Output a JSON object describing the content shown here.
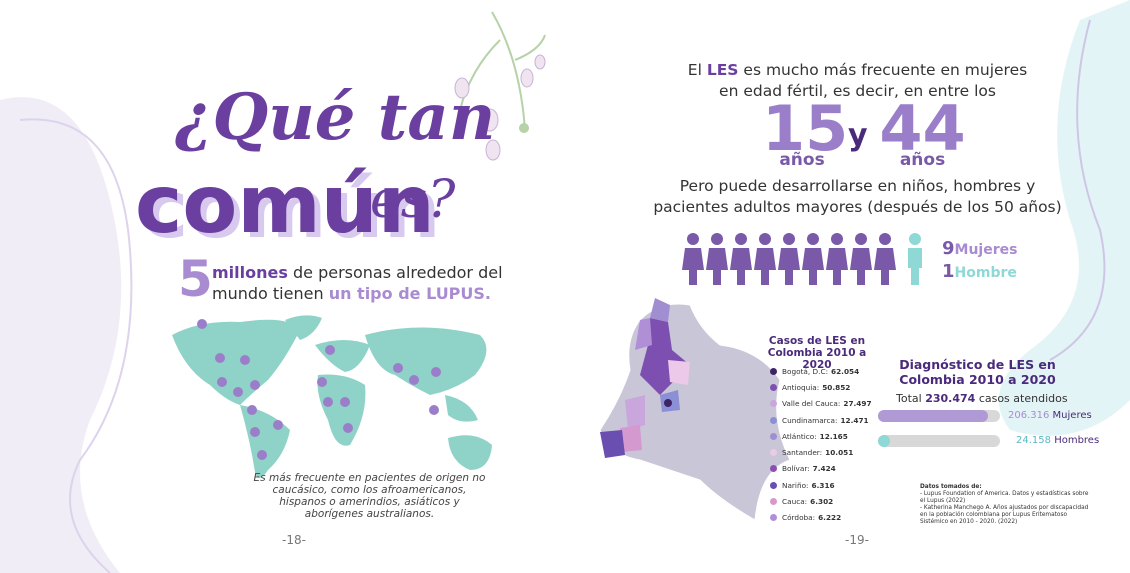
{
  "left": {
    "title_line1": "¿Qué tan",
    "title_word": "común",
    "title_end": "es?",
    "stat_number": "5",
    "stat_bold": "millones",
    "stat_text": "de personas alrededor del",
    "stat_text2": "mundo tienen",
    "stat_highlight": "un tipo de LUPUS.",
    "map_note": "Es más frecuente en pacientes de origen no caucásico, como los afroamericanos, hispanos o amerindios, asiáticos y aborígenes australianos.",
    "page": "-18-"
  },
  "right": {
    "intro_before": "El",
    "intro_bold": "LES",
    "intro_after": "es mucho más frecuente en mujeres",
    "intro_line2": "en edad fértil, es decir, en entre los",
    "age_from": "15",
    "age_from_unit": "años",
    "connector": "y",
    "age_to": "44",
    "age_to_unit": "años",
    "subtitle_line1": "Pero puede desarrollarse en niños, hombres y",
    "subtitle_line2": "pacientes adultos mayores (después de los 50 años)",
    "ratio": {
      "women_count": "9",
      "women_label": "Mujeres",
      "men_count": "1",
      "men_label": "Hombre"
    },
    "cases": {
      "title": "Casos de LES en Colombia 2010 a 2020",
      "items": [
        {
          "name": "Bogotá, D.C:",
          "value": "62.054",
          "color": "#3d2466"
        },
        {
          "name": "Antioquia:",
          "value": "50.852",
          "color": "#7c4fb0"
        },
        {
          "name": "Valle del Cauca:",
          "value": "27.497",
          "color": "#c9a6dc"
        },
        {
          "name": "Cundinamarca:",
          "value": "12.471",
          "color": "#8a8fd6"
        },
        {
          "name": "Atlántico:",
          "value": "12.165",
          "color": "#a08ed0"
        },
        {
          "name": "Santander:",
          "value": "10.051",
          "color": "#ecc9e8"
        },
        {
          "name": "Bolívar:",
          "value": "7.424",
          "color": "#8a4fb0"
        },
        {
          "name": "Nariño:",
          "value": "6.316",
          "color": "#6a4fb0"
        },
        {
          "name": "Cauca:",
          "value": "6.302",
          "color": "#d49ad0"
        },
        {
          "name": "Córdoba:",
          "value": "6.222",
          "color": "#b08fd6"
        }
      ]
    },
    "diagnosis": {
      "title": "Diagnóstico de LES en Colombia 2010 a 2020",
      "total_prefix": "Total",
      "total": "230.474",
      "total_suffix": "casos atendidos",
      "rows": [
        {
          "value": "206.316",
          "label": "Mujeres"
        },
        {
          "value": "24.158",
          "label": "Hombres"
        }
      ]
    },
    "sources": {
      "title": "Datos tomados de:",
      "items": [
        "- Lupus Foundation of America. Datos y estadísticas sobre el Lupus (2022)",
        "- Katherina Manchego A. Años ajustados por discapacidad en la población colombiana por Lupus Eritematoso Sistémico en 2010 - 2020. (2022)"
      ]
    },
    "page": "-19-"
  }
}
